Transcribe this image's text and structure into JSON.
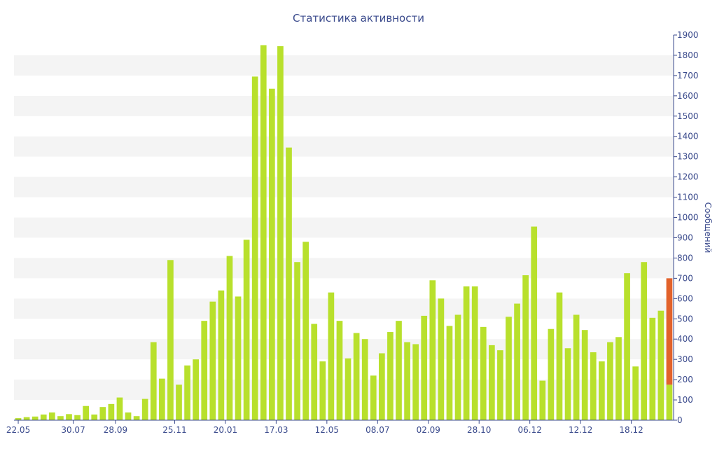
{
  "chart_data": {
    "type": "bar",
    "title": "Статистика активности",
    "xlabel": "",
    "ylabel": "Сообщений",
    "ylim": [
      0,
      1900
    ],
    "ytick_step": 100,
    "grid": "alternating horizontal bands",
    "y_axis_position": "right",
    "colors": {
      "bar": "#b8e02c",
      "highlight": "#e2622b",
      "band": "#f4f4f4",
      "text": "#3a4a8c",
      "axis": "#3a4a8c"
    },
    "x_tick_labels": [
      {
        "label": "22.05",
        "index": 0
      },
      {
        "label": "30.07",
        "index": 6.5
      },
      {
        "label": "28.09",
        "index": 11.5
      },
      {
        "label": "25.11",
        "index": 18.5
      },
      {
        "label": "20.01",
        "index": 24.5
      },
      {
        "label": "17.03",
        "index": 30.5
      },
      {
        "label": "12.05",
        "index": 36.5
      },
      {
        "label": "08.07",
        "index": 42.5
      },
      {
        "label": "02.09",
        "index": 48.5
      },
      {
        "label": "28.10",
        "index": 54.5
      },
      {
        "label": "06.12",
        "index": 60.5
      },
      {
        "label": "12.12",
        "index": 66.5
      },
      {
        "label": "18.12",
        "index": 72.5
      }
    ],
    "series": [
      {
        "values": [
          10,
          15,
          18,
          28,
          38,
          20,
          30,
          25,
          70,
          28,
          65,
          80,
          112,
          38,
          20,
          105,
          385,
          205,
          790,
          175,
          270,
          300,
          490,
          585,
          640,
          810,
          610,
          890,
          1695,
          1850,
          1635,
          1845,
          1345,
          780,
          880,
          475,
          290,
          630,
          490,
          305,
          430,
          400,
          220,
          330,
          435,
          490,
          385,
          375,
          515,
          690,
          600,
          465,
          520,
          660,
          660,
          460,
          370,
          345,
          510,
          575,
          715,
          955,
          195,
          450,
          630,
          355,
          520,
          445,
          335,
          290,
          385,
          410,
          725,
          265,
          780,
          505,
          540,
          175
        ]
      },
      {
        "overlay_last_bar": {
          "index": 77,
          "from": 175,
          "to": 700
        }
      }
    ]
  }
}
